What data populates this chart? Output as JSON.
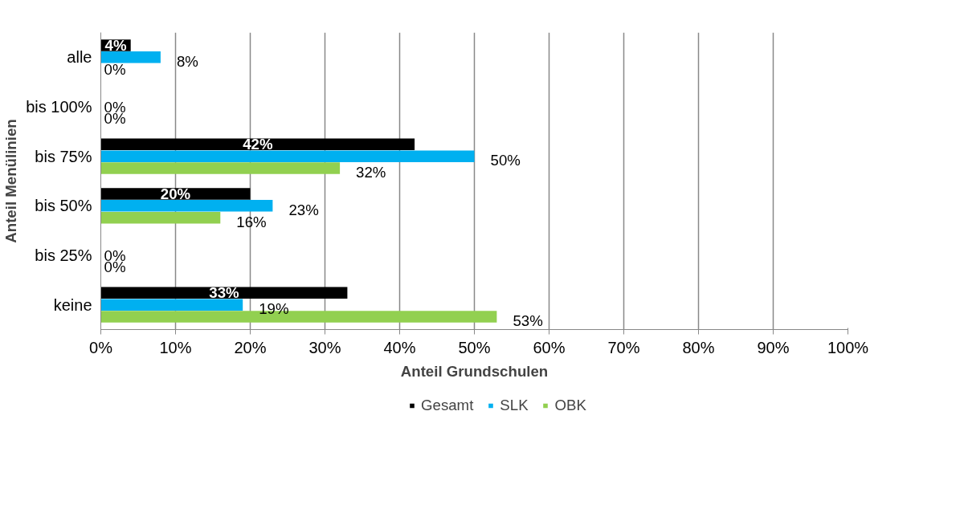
{
  "chart_data": {
    "type": "bar",
    "orientation": "horizontal",
    "xlabel": "Anteil Grundschulen",
    "ylabel": "Anteil Menülinien",
    "categories": [
      "alle",
      "bis 100%",
      "bis 75%",
      "bis 50%",
      "bis 25%",
      "keine"
    ],
    "series": [
      {
        "name": "Gesamt",
        "color": "#000000",
        "values": [
          4,
          0,
          42,
          20,
          0,
          33
        ],
        "value_labels": [
          "4%",
          null,
          "42%",
          "20%",
          null,
          "33%"
        ]
      },
      {
        "name": "SLK",
        "color": "#00b0f0",
        "values": [
          8,
          0,
          50,
          23,
          0,
          19
        ],
        "value_labels": [
          "8%",
          "0%",
          "50%",
          "23%",
          "0%",
          "19%"
        ]
      },
      {
        "name": "OBK",
        "color": "#92d050",
        "values": [
          0,
          0,
          32,
          16,
          0,
          53
        ],
        "value_labels": [
          "0%",
          "0%",
          "32%",
          "16%",
          "0%",
          "53%"
        ]
      }
    ],
    "xlim": [
      0,
      100
    ],
    "xticks": [
      {
        "value": 0,
        "label": "0%"
      },
      {
        "value": 10,
        "label": "10%"
      },
      {
        "value": 20,
        "label": "20%"
      },
      {
        "value": 30,
        "label": "30%"
      },
      {
        "value": 40,
        "label": "40%"
      },
      {
        "value": 50,
        "label": "50%"
      },
      {
        "value": 60,
        "label": "60%"
      },
      {
        "value": 70,
        "label": "70%"
      },
      {
        "value": 80,
        "label": "80%"
      },
      {
        "value": 90,
        "label": "90%"
      },
      {
        "value": 100,
        "label": "100%"
      }
    ],
    "grid": "x",
    "legend": "bottom"
  }
}
